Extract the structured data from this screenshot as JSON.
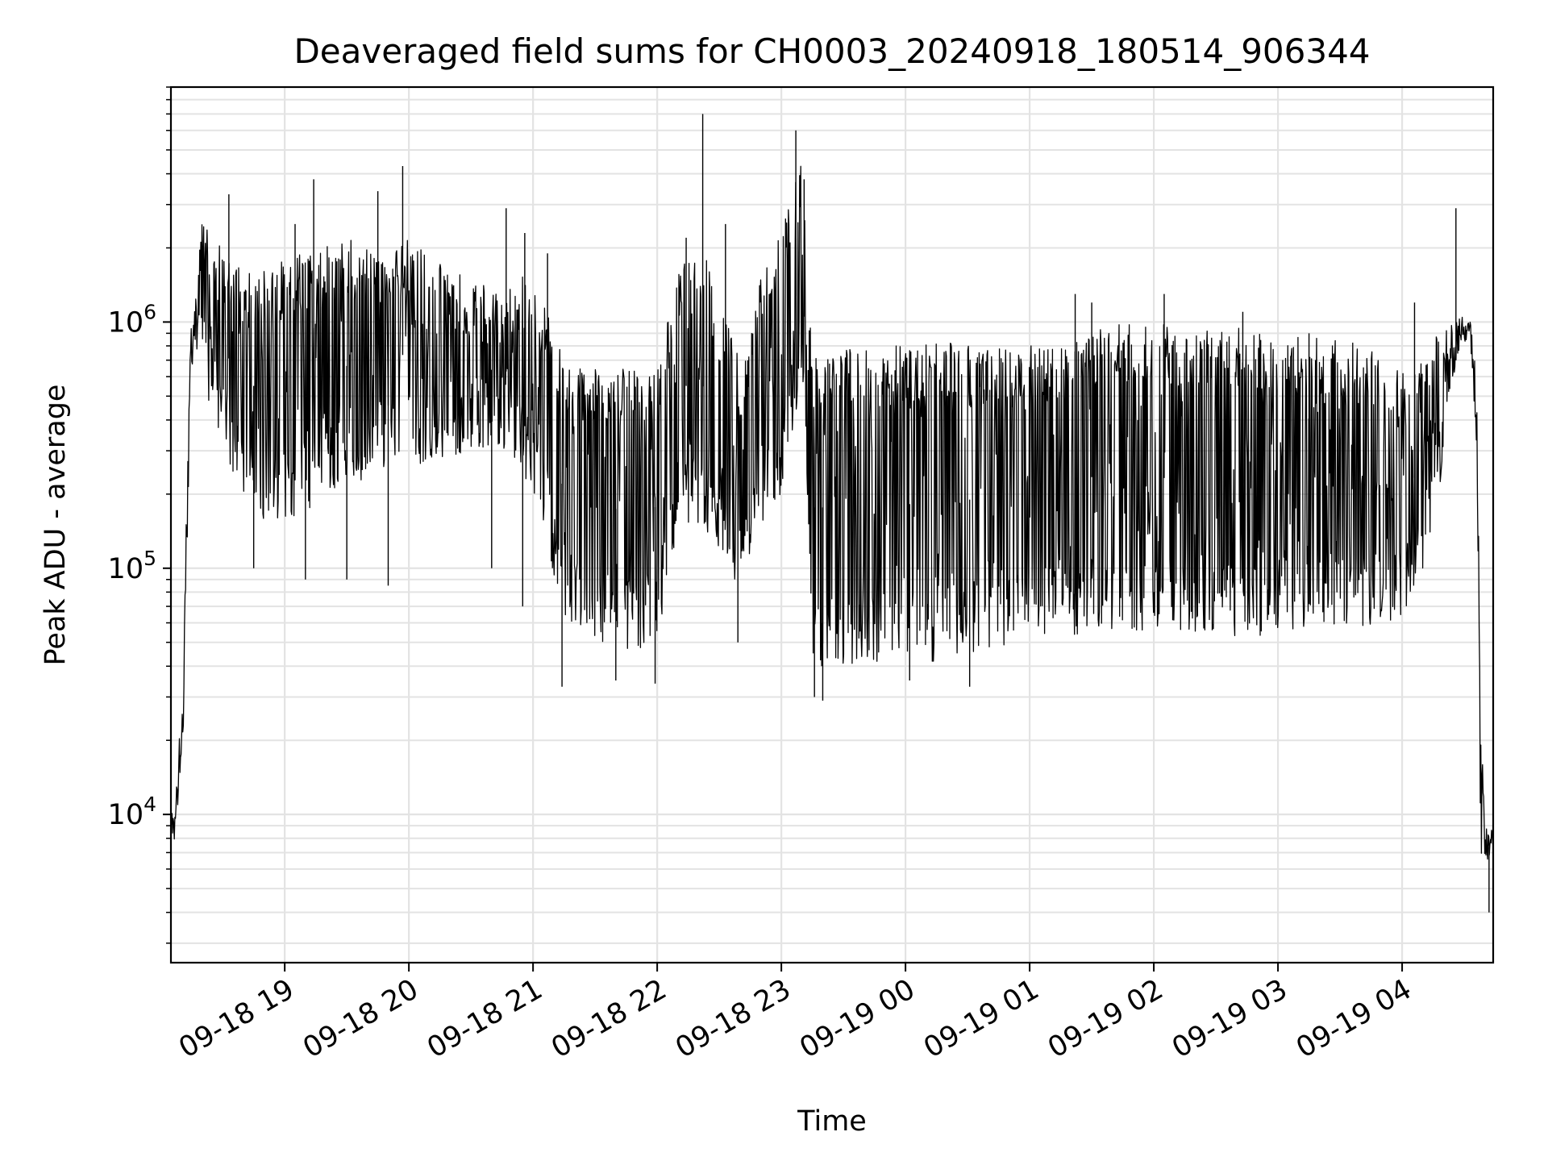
{
  "chart_data": {
    "type": "line",
    "title": "Deaveraged field sums for CH0003_20240918_180514_906344",
    "xlabel": "Time",
    "ylabel": "Peak ADU - average",
    "yscale": "log",
    "grid": true,
    "grid_minor": true,
    "line_color": "#000000",
    "grid_color": "#e3e3e3",
    "xlim": [
      "2024-09-18 18:05",
      "2024-09-19 04:44"
    ],
    "ylim": [
      2500,
      9000000
    ],
    "x_ticks": [
      {
        "value": "2024-09-18 19:00",
        "label": "09-18 19"
      },
      {
        "value": "2024-09-18 20:00",
        "label": "09-18 20"
      },
      {
        "value": "2024-09-18 21:00",
        "label": "09-18 21"
      },
      {
        "value": "2024-09-18 22:00",
        "label": "09-18 22"
      },
      {
        "value": "2024-09-18 23:00",
        "label": "09-18 23"
      },
      {
        "value": "2024-09-19 00:00",
        "label": "09-19 00"
      },
      {
        "value": "2024-09-19 01:00",
        "label": "09-19 01"
      },
      {
        "value": "2024-09-19 02:00",
        "label": "09-19 02"
      },
      {
        "value": "2024-09-19 03:00",
        "label": "09-19 03"
      },
      {
        "value": "2024-09-19 04:00",
        "label": "09-19 04"
      }
    ],
    "y_ticks": [
      {
        "value": 10000,
        "base": "10",
        "exp": "4"
      },
      {
        "value": 100000,
        "base": "10",
        "exp": "5"
      },
      {
        "value": 1000000,
        "base": "10",
        "exp": "6"
      }
    ],
    "series": [
      {
        "envelope": true,
        "x": [
          "2024-09-18 18:05",
          "2024-09-18 18:07",
          "2024-09-18 18:09",
          "2024-09-18 18:11",
          "2024-09-18 18:13",
          "2024-09-18 18:15",
          "2024-09-18 18:20",
          "2024-09-18 18:30",
          "2024-09-18 18:40",
          "2024-09-18 18:50",
          "2024-09-18 19:00",
          "2024-09-18 19:15",
          "2024-09-18 19:30",
          "2024-09-18 19:45",
          "2024-09-18 20:00",
          "2024-09-18 20:15",
          "2024-09-18 20:30",
          "2024-09-18 20:45",
          "2024-09-18 20:55",
          "2024-09-18 21:05",
          "2024-09-18 21:15",
          "2024-09-18 21:30",
          "2024-09-18 21:45",
          "2024-09-18 22:00",
          "2024-09-18 22:10",
          "2024-09-18 22:20",
          "2024-09-18 22:30",
          "2024-09-18 22:40",
          "2024-09-18 22:50",
          "2024-09-18 23:00",
          "2024-09-18 23:10",
          "2024-09-18 23:15",
          "2024-09-18 23:30",
          "2024-09-18 23:45",
          "2024-09-19 00:00",
          "2024-09-19 00:15",
          "2024-09-19 00:30",
          "2024-09-19 00:45",
          "2024-09-19 01:00",
          "2024-09-19 01:15",
          "2024-09-19 01:30",
          "2024-09-19 01:45",
          "2024-09-19 02:00",
          "2024-09-19 02:15",
          "2024-09-19 02:30",
          "2024-09-19 02:45",
          "2024-09-19 03:00",
          "2024-09-19 03:15",
          "2024-09-19 03:30",
          "2024-09-19 03:45",
          "2024-09-19 04:00",
          "2024-09-19 04:10",
          "2024-09-19 04:20",
          "2024-09-19 04:28",
          "2024-09-19 04:33",
          "2024-09-19 04:36",
          "2024-09-19 04:38",
          "2024-09-19 04:40",
          "2024-09-19 04:42",
          "2024-09-19 04:44"
        ],
        "upper": [
          10000,
          11000,
          20000,
          35000,
          300000,
          1200000,
          2500000,
          2000000,
          1700000,
          1800000,
          1800000,
          2000000,
          2200000,
          2000000,
          2200000,
          1800000,
          1500000,
          1300000,
          1700000,
          1200000,
          700000,
          650000,
          650000,
          630000,
          1800000,
          2400000,
          1200000,
          700000,
          1500000,
          2500000,
          4500000,
          780000,
          780000,
          800000,
          820000,
          850000,
          800000,
          780000,
          800000,
          800000,
          1000000,
          1000000,
          1000000,
          950000,
          950000,
          950000,
          920000,
          880000,
          850000,
          800000,
          620000,
          700000,
          1000000,
          1100000,
          1000000,
          600000,
          30000,
          10000,
          9000,
          9000
        ],
        "lower": [
          4000,
          6000,
          9000,
          15000,
          100000,
          500000,
          600000,
          300000,
          200000,
          150000,
          150000,
          180000,
          200000,
          250000,
          250000,
          280000,
          300000,
          300000,
          250000,
          150000,
          60000,
          50000,
          45000,
          50000,
          150000,
          150000,
          120000,
          80000,
          150000,
          200000,
          600000,
          40000,
          40000,
          40000,
          40000,
          42000,
          45000,
          48000,
          50000,
          52000,
          55000,
          55000,
          55000,
          55000,
          52000,
          52000,
          55000,
          58000,
          58000,
          58000,
          60000,
          100000,
          250000,
          700000,
          800000,
          200000,
          6000,
          5000,
          6000,
          7000
        ]
      }
    ],
    "spikes": [
      {
        "x": "2024-09-18 18:33",
        "y": 3300000
      },
      {
        "x": "2024-09-18 18:45",
        "y": 100000
      },
      {
        "x": "2024-09-18 19:05",
        "y": 2500000
      },
      {
        "x": "2024-09-18 19:14",
        "y": 3800000
      },
      {
        "x": "2024-09-18 19:10",
        "y": 90000
      },
      {
        "x": "2024-09-18 19:30",
        "y": 90000
      },
      {
        "x": "2024-09-18 19:45",
        "y": 3400000
      },
      {
        "x": "2024-09-18 19:50",
        "y": 85000
      },
      {
        "x": "2024-09-18 19:57",
        "y": 4300000
      },
      {
        "x": "2024-09-18 20:40",
        "y": 100000
      },
      {
        "x": "2024-09-18 20:47",
        "y": 2900000
      },
      {
        "x": "2024-09-18 20:56",
        "y": 2300000
      },
      {
        "x": "2024-09-18 20:55",
        "y": 70000
      },
      {
        "x": "2024-09-18 21:07",
        "y": 1900000
      },
      {
        "x": "2024-09-18 21:14",
        "y": 33000
      },
      {
        "x": "2024-09-18 21:40",
        "y": 35000
      },
      {
        "x": "2024-09-18 21:59",
        "y": 34000
      },
      {
        "x": "2024-09-18 22:14",
        "y": 2200000
      },
      {
        "x": "2024-09-18 22:22",
        "y": 7000000
      },
      {
        "x": "2024-09-18 22:33",
        "y": 2500000
      },
      {
        "x": "2024-09-18 22:39",
        "y": 50000
      },
      {
        "x": "2024-09-18 23:07",
        "y": 6000000
      },
      {
        "x": "2024-09-18 23:11",
        "y": 3800000
      },
      {
        "x": "2024-09-18 23:16",
        "y": 30000
      },
      {
        "x": "2024-09-18 23:20",
        "y": 29000
      },
      {
        "x": "2024-09-19 00:02",
        "y": 35000
      },
      {
        "x": "2024-09-19 00:31",
        "y": 33000
      },
      {
        "x": "2024-09-19 01:22",
        "y": 1300000
      },
      {
        "x": "2024-09-19 01:30",
        "y": 1200000
      },
      {
        "x": "2024-09-19 02:05",
        "y": 1300000
      },
      {
        "x": "2024-09-19 02:43",
        "y": 1100000
      },
      {
        "x": "2024-09-19 03:15",
        "y": 900000
      },
      {
        "x": "2024-09-19 04:06",
        "y": 1200000
      },
      {
        "x": "2024-09-19 04:26",
        "y": 2900000
      },
      {
        "x": "2024-09-19 04:42",
        "y": 4000
      }
    ]
  }
}
